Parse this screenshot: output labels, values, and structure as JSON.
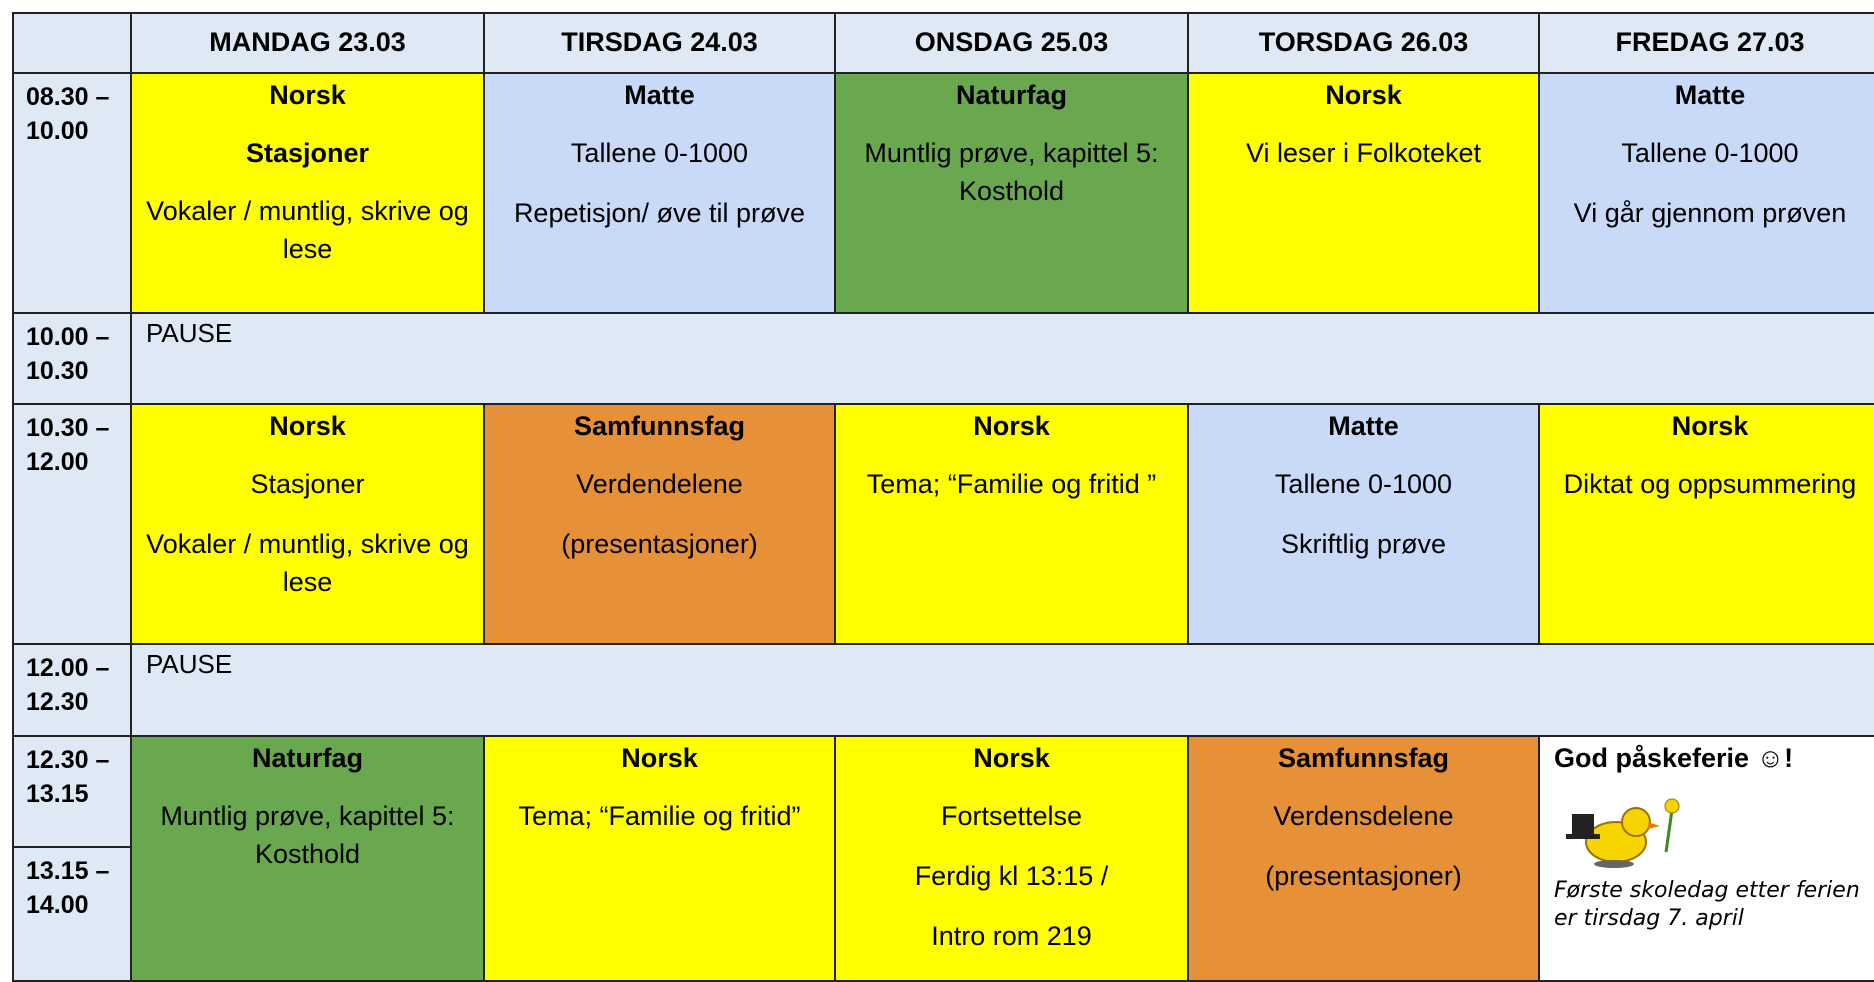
{
  "header": {
    "columns": [
      "MANDAG 23.03",
      "TIRSDAG 24.03",
      "ONSDAG 25.03",
      "TORSDAG 26.03",
      "FREDAG 27.03"
    ]
  },
  "rows": [
    {
      "time": [
        "08.30 –",
        "10.00"
      ],
      "cells": [
        {
          "subject": "Norsk",
          "heading": "Stasjoner",
          "lines": [
            "Vokaler / muntlig, skrive og lese"
          ],
          "color": "#ffff00"
        },
        {
          "subject": "Matte",
          "lines": [
            "Tallene 0-1000",
            "Repetisjon/ øve til prøve"
          ],
          "color": "#c9daf8"
        },
        {
          "subject": "Naturfag",
          "lines": [
            "Muntlig prøve, kapittel 5: Kosthold"
          ],
          "color": "#6aa84f"
        },
        {
          "subject": "Norsk",
          "lines": [
            "Vi leser i Folkoteket"
          ],
          "color": "#ffff00"
        },
        {
          "subject": "Matte",
          "lines": [
            "Tallene 0-1000",
            "Vi går gjennom prøven"
          ],
          "color": "#c9daf8"
        }
      ]
    },
    {
      "time": [
        "10.00 –",
        "10.30"
      ],
      "pause": "PAUSE"
    },
    {
      "time": [
        "10.30 –",
        "12.00"
      ],
      "cells": [
        {
          "subject": "Norsk",
          "lines": [
            "Stasjoner",
            "Vokaler / muntlig, skrive og lese"
          ],
          "color": "#ffff00"
        },
        {
          "subject": "Samfunnsfag",
          "lines": [
            "Verdendelene",
            "(presentasjoner)"
          ],
          "color": "#e69138"
        },
        {
          "subject": "Norsk",
          "lines": [
            "Tema; “Familie og fritid ”"
          ],
          "color": "#ffff00"
        },
        {
          "subject": "Matte",
          "lines": [
            "Tallene 0-1000",
            "Skriftlig prøve"
          ],
          "color": "#c9daf8"
        },
        {
          "subject": "Norsk",
          "lines": [
            "Diktat og oppsummering"
          ],
          "color": "#ffff00"
        }
      ]
    },
    {
      "time": [
        "12.00 –",
        "12.30"
      ],
      "pause": "PAUSE"
    },
    {
      "time": [
        "12.30 –",
        "13.15"
      ],
      "time2": [
        "13.15 –",
        "14.00"
      ],
      "cells": [
        {
          "subject": "Naturfag",
          "lines": [
            "Muntlig prøve, kapittel 5: Kosthold"
          ],
          "color": "#6aa84f"
        },
        {
          "subject": "Norsk",
          "lines": [
            "Tema; “Familie og fritid”"
          ],
          "color": "#ffff00"
        },
        {
          "subject": "Norsk",
          "lines": [
            "Fortsettelse",
            "Ferdig kl 13:15 /",
            "Intro rom 219"
          ],
          "color": "#ffff00"
        },
        {
          "subject": "Samfunnsfag",
          "lines": [
            "Verdensdelene",
            "(presentasjoner)"
          ],
          "color": "#e69138"
        },
        {
          "title": "God påskeferie ☺!",
          "note": "Første skoledag etter ferien er tirsdag 7. april",
          "color": "#ffffff"
        }
      ]
    }
  ]
}
